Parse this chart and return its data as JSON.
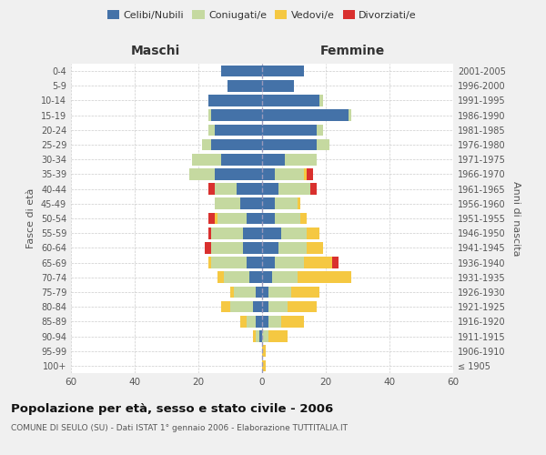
{
  "age_groups": [
    "100+",
    "95-99",
    "90-94",
    "85-89",
    "80-84",
    "75-79",
    "70-74",
    "65-69",
    "60-64",
    "55-59",
    "50-54",
    "45-49",
    "40-44",
    "35-39",
    "30-34",
    "25-29",
    "20-24",
    "15-19",
    "10-14",
    "5-9",
    "0-4"
  ],
  "birth_years": [
    "≤ 1905",
    "1906-1910",
    "1911-1915",
    "1916-1920",
    "1921-1925",
    "1926-1930",
    "1931-1935",
    "1936-1940",
    "1941-1945",
    "1946-1950",
    "1951-1955",
    "1956-1960",
    "1961-1965",
    "1966-1970",
    "1971-1975",
    "1976-1980",
    "1981-1985",
    "1986-1990",
    "1991-1995",
    "1996-2000",
    "2001-2005"
  ],
  "maschi": {
    "celibi": [
      0,
      0,
      1,
      2,
      3,
      2,
      4,
      5,
      6,
      6,
      5,
      7,
      8,
      15,
      13,
      16,
      15,
      16,
      17,
      11,
      13
    ],
    "coniugati": [
      0,
      0,
      1,
      3,
      7,
      7,
      8,
      11,
      10,
      10,
      9,
      8,
      7,
      8,
      9,
      3,
      2,
      1,
      0,
      0,
      0
    ],
    "vedovi": [
      0,
      0,
      1,
      2,
      3,
      1,
      2,
      1,
      0,
      0,
      1,
      0,
      0,
      0,
      0,
      0,
      0,
      0,
      0,
      0,
      0
    ],
    "divorziati": [
      0,
      0,
      0,
      0,
      0,
      0,
      0,
      0,
      2,
      1,
      2,
      0,
      2,
      0,
      0,
      0,
      0,
      0,
      0,
      0,
      0
    ]
  },
  "femmine": {
    "nubili": [
      0,
      0,
      0,
      2,
      2,
      2,
      3,
      4,
      5,
      6,
      4,
      4,
      5,
      4,
      7,
      17,
      17,
      27,
      18,
      10,
      13
    ],
    "coniugate": [
      0,
      0,
      2,
      4,
      6,
      7,
      8,
      9,
      9,
      8,
      8,
      7,
      10,
      9,
      10,
      4,
      2,
      1,
      1,
      0,
      0
    ],
    "vedove": [
      1,
      1,
      6,
      7,
      9,
      9,
      17,
      9,
      5,
      4,
      2,
      1,
      0,
      1,
      0,
      0,
      0,
      0,
      0,
      0,
      0
    ],
    "divorziate": [
      0,
      0,
      0,
      0,
      0,
      0,
      0,
      2,
      0,
      0,
      0,
      0,
      2,
      2,
      0,
      0,
      0,
      0,
      0,
      0,
      0
    ]
  },
  "colors": {
    "celibi_nubili": "#4472a8",
    "coniugati": "#c5d9a0",
    "vedovi": "#f5c842",
    "divorziati": "#d9302e"
  },
  "title": "Popolazione per età, sesso e stato civile - 2006",
  "subtitle": "COMUNE DI SEULO (SU) - Dati ISTAT 1° gennaio 2006 - Elaborazione TUTTITALIA.IT",
  "xlabel_left": "Maschi",
  "xlabel_right": "Femmine",
  "ylabel_left": "Fasce di età",
  "ylabel_right": "Anni di nascita",
  "xlim": 60,
  "legend_labels": [
    "Celibi/Nubili",
    "Coniugati/e",
    "Vedovi/e",
    "Divorziati/e"
  ],
  "bg_color": "#f0f0f0",
  "plot_bg_color": "#ffffff"
}
